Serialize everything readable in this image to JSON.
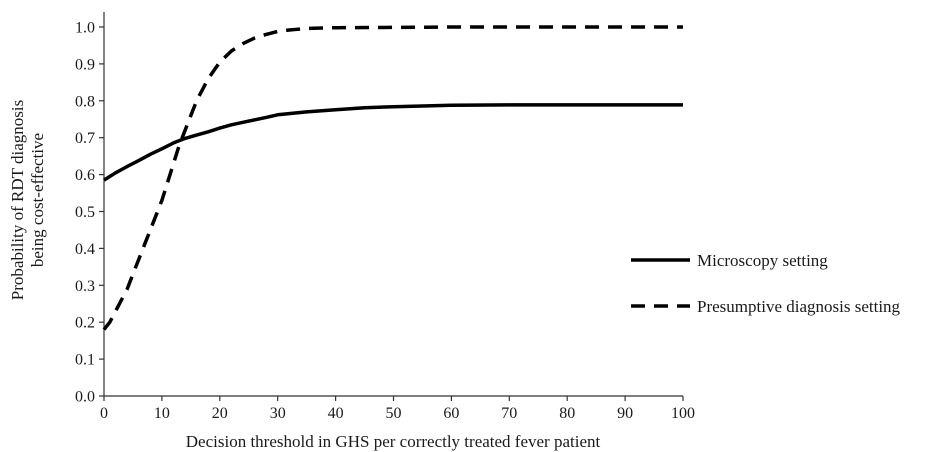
{
  "chart_data": {
    "type": "line",
    "title": "",
    "xlabel": "Decision threshold in GHS per correctly treated fever patient",
    "ylabel_lines": [
      "Probability of RDT diagnosis",
      "being cost-effective"
    ],
    "xlim": [
      0,
      100
    ],
    "ylim": [
      0,
      1.0
    ],
    "x_ticks": [
      "0",
      "10",
      "20",
      "30",
      "40",
      "50",
      "60",
      "70",
      "80",
      "90",
      "100"
    ],
    "y_ticks": [
      "0.0",
      "0.1",
      "0.2",
      "0.3",
      "0.4",
      "0.5",
      "0.6",
      "0.7",
      "0.8",
      "0.9",
      "1.0"
    ],
    "grid": false,
    "legend_position": "right",
    "series": [
      {
        "name": "Microscopy setting",
        "style": "solid",
        "color": "#000000",
        "x": [
          0,
          2,
          4,
          6,
          8,
          10,
          12,
          14,
          16,
          18,
          20,
          22,
          25,
          28,
          30,
          35,
          40,
          45,
          50,
          55,
          60,
          70,
          80,
          90,
          100
        ],
        "y": [
          0.585,
          0.605,
          0.622,
          0.638,
          0.655,
          0.67,
          0.686,
          0.698,
          0.707,
          0.716,
          0.726,
          0.735,
          0.745,
          0.755,
          0.762,
          0.77,
          0.776,
          0.781,
          0.784,
          0.786,
          0.788,
          0.789,
          0.789,
          0.789,
          0.789
        ]
      },
      {
        "name": "Presumptive diagnosis setting",
        "style": "dashed",
        "color": "#000000",
        "x": [
          0,
          1,
          2,
          3,
          4,
          5,
          6,
          7,
          8,
          9,
          10,
          11,
          12,
          13,
          14,
          15,
          16,
          18,
          20,
          22,
          24,
          26,
          28,
          30,
          32,
          35,
          40,
          50,
          60,
          80,
          100
        ],
        "y": [
          0.18,
          0.2,
          0.23,
          0.26,
          0.29,
          0.33,
          0.37,
          0.41,
          0.45,
          0.49,
          0.53,
          0.58,
          0.63,
          0.68,
          0.72,
          0.76,
          0.8,
          0.86,
          0.905,
          0.935,
          0.955,
          0.97,
          0.98,
          0.988,
          0.992,
          0.996,
          0.998,
          0.999,
          1.0,
          1.0,
          1.0
        ]
      }
    ]
  }
}
